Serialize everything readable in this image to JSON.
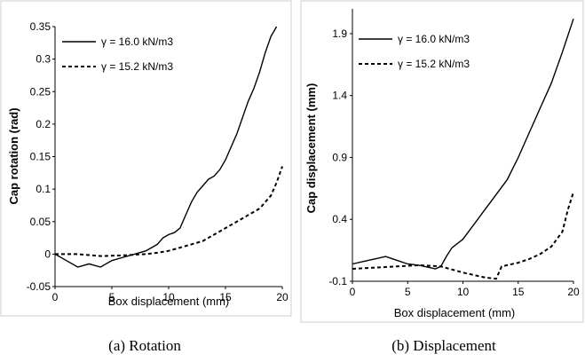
{
  "chart_data": [
    {
      "type": "line",
      "caption": "(a) Rotation",
      "xlabel": "Box displacement (mm)",
      "ylabel": "Cap rotation (rad)",
      "xlim": [
        0,
        20
      ],
      "ylim": [
        -0.05,
        0.35
      ],
      "xticks": [
        "0",
        "5",
        "10",
        "15",
        "20"
      ],
      "yticks": [
        "-0.05",
        "0",
        "0.05",
        "0.1",
        "0.15",
        "0.2",
        "0.25",
        "0.3",
        "0.35"
      ],
      "legend_position": "top-left",
      "series": [
        {
          "name": "γ = 16.0 kN/m3",
          "style": "solid",
          "x": [
            0,
            1,
            2,
            3,
            4,
            5,
            6,
            7,
            8,
            8.5,
            9,
            9.5,
            10,
            10.5,
            11,
            11.5,
            12,
            12.5,
            13,
            13.5,
            14,
            14.5,
            15,
            15.5,
            16,
            16.5,
            17,
            17.5,
            18,
            18.5,
            19,
            19.5
          ],
          "y": [
            0,
            -0.01,
            -0.02,
            -0.015,
            -0.02,
            -0.01,
            -0.005,
            0.0,
            0.005,
            0.01,
            0.015,
            0.025,
            0.03,
            0.033,
            0.04,
            0.06,
            0.08,
            0.095,
            0.105,
            0.115,
            0.12,
            0.13,
            0.145,
            0.165,
            0.185,
            0.21,
            0.235,
            0.255,
            0.28,
            0.31,
            0.335,
            0.35
          ]
        },
        {
          "name": "γ = 15.2 kN/m3",
          "style": "dashed",
          "x": [
            0,
            2,
            4,
            6,
            8,
            9,
            10,
            11,
            12,
            13,
            14,
            15,
            16,
            17,
            18,
            18.5,
            19,
            19.5,
            20
          ],
          "y": [
            0,
            0.0,
            -0.003,
            -0.002,
            0.0,
            0.002,
            0.005,
            0.01,
            0.015,
            0.02,
            0.03,
            0.04,
            0.05,
            0.06,
            0.07,
            0.08,
            0.09,
            0.11,
            0.135
          ]
        }
      ]
    },
    {
      "type": "line",
      "caption": "(b) Displacement",
      "xlabel": "Box displacement (mm)",
      "ylabel": "Cap displacement (mm)",
      "xlim": [
        0,
        20
      ],
      "ylim": [
        -0.1,
        2.1
      ],
      "xticks": [
        "0",
        "5",
        "10",
        "15",
        "20"
      ],
      "yticks": [
        "-0.1",
        "0.4",
        "0.9",
        "1.4",
        "1.9"
      ],
      "legend_position": "top-left",
      "series": [
        {
          "name": "γ = 16.0 kN/m3",
          "style": "solid",
          "x": [
            0,
            1,
            2,
            3,
            4,
            5,
            6,
            7,
            7.5,
            8,
            8.5,
            9,
            10,
            11,
            12,
            13,
            14,
            15,
            16,
            17,
            18,
            19,
            20
          ],
          "y": [
            0.04,
            0.06,
            0.08,
            0.1,
            0.07,
            0.04,
            0.03,
            0.01,
            0.0,
            0.02,
            0.1,
            0.17,
            0.24,
            0.36,
            0.48,
            0.6,
            0.72,
            0.9,
            1.1,
            1.3,
            1.5,
            1.75,
            2.02
          ]
        },
        {
          "name": "γ = 15.2 kN/m3",
          "style": "dashed",
          "x": [
            0,
            2,
            4,
            6,
            8,
            10,
            12,
            13,
            13.5,
            14,
            15,
            16,
            17,
            18,
            19,
            19.5,
            20
          ],
          "y": [
            0.0,
            0.01,
            0.02,
            0.03,
            0.02,
            -0.03,
            -0.07,
            -0.08,
            0.02,
            0.03,
            0.05,
            0.08,
            0.12,
            0.18,
            0.3,
            0.48,
            0.62
          ]
        }
      ]
    }
  ]
}
